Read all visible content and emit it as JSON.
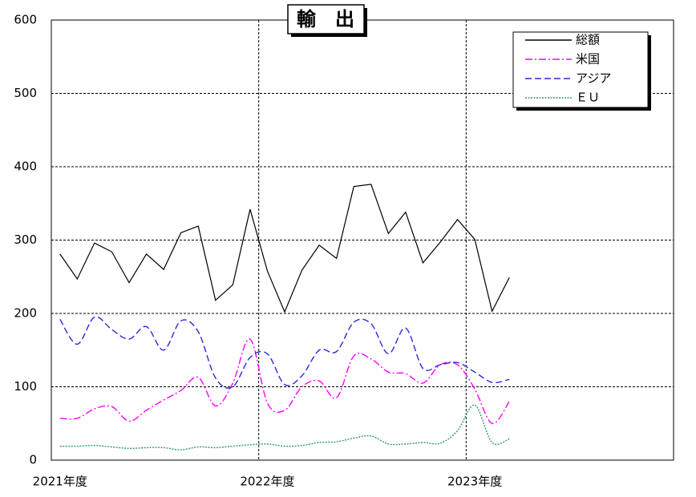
{
  "chart_data": {
    "type": "line",
    "title": "輸　出",
    "categories": [
      "2021年度",
      null,
      null,
      null,
      null,
      null,
      null,
      null,
      null,
      null,
      null,
      null,
      "2022年度",
      null,
      null,
      null,
      null,
      null,
      null,
      null,
      null,
      null,
      null,
      null,
      "2023年度",
      null,
      null,
      null,
      null,
      null,
      null,
      null,
      null,
      null,
      null,
      null
    ],
    "series": [
      {
        "name": "総額",
        "color": "#000000",
        "smooth": false,
        "values": [
          281,
          247,
          296,
          284,
          242,
          281,
          260,
          310,
          319,
          218,
          239,
          342,
          258,
          202,
          259,
          293,
          275,
          373,
          376,
          309,
          338,
          269,
          297,
          328,
          301,
          203,
          249,
          null,
          null,
          null,
          null,
          null,
          null,
          null,
          null,
          null
        ]
      },
      {
        "name": "米国",
        "color": "#ff00ff",
        "smooth": true,
        "values": [
          57,
          57,
          70,
          73,
          53,
          68,
          82,
          95,
          113,
          74,
          105,
          165,
          78,
          68,
          100,
          108,
          85,
          142,
          138,
          120,
          118,
          105,
          130,
          130,
          97,
          50,
          80,
          null,
          null,
          null,
          null,
          null,
          null,
          null,
          null,
          null
        ]
      },
      {
        "name": "アジア",
        "color": "#2a2ad8",
        "smooth": true,
        "values": [
          192,
          158,
          195,
          178,
          165,
          182,
          150,
          190,
          175,
          112,
          100,
          140,
          145,
          103,
          115,
          150,
          148,
          188,
          186,
          145,
          180,
          125,
          130,
          133,
          120,
          106,
          110,
          null,
          null,
          null,
          null,
          null,
          null,
          null,
          null,
          null
        ]
      },
      {
        "name": "ＥＵ",
        "color": "#2f9a78",
        "smooth": true,
        "values": [
          19,
          19,
          20,
          18,
          16,
          17,
          17,
          14,
          18,
          17,
          19,
          21,
          22,
          19,
          20,
          24,
          25,
          30,
          33,
          22,
          22,
          24,
          23,
          40,
          75,
          24,
          29,
          null,
          null,
          null,
          null,
          null,
          null,
          null,
          null,
          null
        ]
      }
    ],
    "ylim": [
      0,
      600
    ],
    "yticks": [
      0,
      100,
      200,
      300,
      400,
      500,
      600
    ],
    "grid": true,
    "legend": "upper right"
  }
}
